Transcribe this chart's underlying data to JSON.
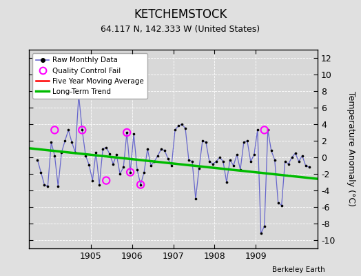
{
  "title": "KETCHEMSTOCK",
  "subtitle": "64.117 N, 142.333 W (United States)",
  "ylabel": "Temperature Anomaly (°C)",
  "attribution": "Berkeley Earth",
  "ylim": [
    -11,
    13
  ],
  "yticks": [
    -10,
    -8,
    -6,
    -4,
    -2,
    0,
    2,
    4,
    6,
    8,
    10,
    12
  ],
  "xlim": [
    1903.5,
    1910.5
  ],
  "xticks": [
    1905,
    1906,
    1907,
    1908,
    1909
  ],
  "bg_color": "#e0e0e0",
  "plot_bg_color": "#d8d8d8",
  "grid_color": "white",
  "raw_line_color": "#6666cc",
  "raw_dot_color": "black",
  "qc_color": "#ff00ff",
  "moving_avg_color": "red",
  "trend_color": "#00bb00",
  "raw_x": [
    1903.708,
    1903.792,
    1903.875,
    1903.958,
    1904.042,
    1904.125,
    1904.208,
    1904.292,
    1904.375,
    1904.458,
    1904.542,
    1904.625,
    1904.708,
    1904.792,
    1904.875,
    1904.958,
    1905.042,
    1905.125,
    1905.208,
    1905.292,
    1905.375,
    1905.458,
    1905.542,
    1905.625,
    1905.708,
    1905.792,
    1905.875,
    1905.958,
    1906.042,
    1906.125,
    1906.208,
    1906.292,
    1906.375,
    1906.458,
    1906.542,
    1906.625,
    1906.708,
    1906.792,
    1906.875,
    1906.958,
    1907.042,
    1907.125,
    1907.208,
    1907.292,
    1907.375,
    1907.458,
    1907.542,
    1907.625,
    1907.708,
    1907.792,
    1907.875,
    1907.958,
    1908.042,
    1908.125,
    1908.208,
    1908.292,
    1908.375,
    1908.458,
    1908.542,
    1908.625,
    1908.708,
    1908.792,
    1908.875,
    1908.958,
    1909.042,
    1909.125,
    1909.208,
    1909.292,
    1909.375,
    1909.458,
    1909.542,
    1909.625,
    1909.708,
    1909.792,
    1909.875,
    1909.958,
    1910.042,
    1910.125,
    1910.208,
    1910.292
  ],
  "raw_y": [
    -0.3,
    -1.8,
    -3.3,
    -3.5,
    1.8,
    0.2,
    -3.5,
    0.6,
    2.0,
    3.3,
    1.8,
    0.6,
    7.5,
    3.3,
    0.2,
    -0.9,
    -2.8,
    0.6,
    -3.3,
    1.0,
    1.2,
    0.4,
    -0.8,
    0.3,
    -2.0,
    -1.2,
    3.0,
    -1.8,
    2.8,
    -1.5,
    -3.3,
    -1.8,
    1.0,
    -1.0,
    -0.5,
    0.2,
    1.0,
    0.8,
    -0.2,
    -1.0,
    3.3,
    3.8,
    4.0,
    3.5,
    -0.3,
    -0.5,
    -5.0,
    -1.3,
    2.0,
    1.8,
    -0.5,
    -0.8,
    -0.5,
    0.0,
    -0.5,
    -3.0,
    -0.3,
    -1.0,
    0.3,
    -1.5,
    1.8,
    2.0,
    -0.5,
    0.3,
    3.3,
    -9.2,
    -8.3,
    3.3,
    0.8,
    -0.3,
    -5.5,
    -5.8,
    -0.5,
    -0.8,
    0.0,
    0.5,
    -0.5,
    0.2,
    -1.0,
    -1.2
  ],
  "qc_x": [
    1904.125,
    1904.792,
    1905.375,
    1905.875,
    1905.958,
    1906.208,
    1909.208
  ],
  "qc_y": [
    3.3,
    3.3,
    -2.8,
    3.0,
    -1.8,
    -3.3,
    3.3
  ],
  "trend_x": [
    1903.5,
    1910.5
  ],
  "trend_y": [
    1.1,
    -2.6
  ]
}
